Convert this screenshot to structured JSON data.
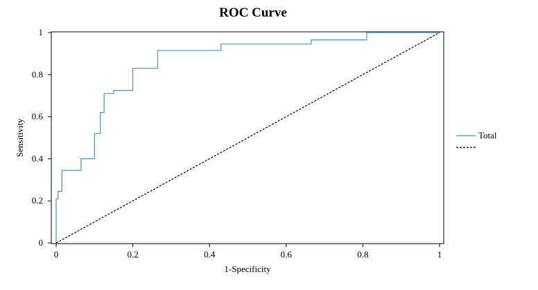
{
  "chart_data": {
    "type": "line",
    "title": "ROC Curve",
    "xlabel": "1-Specificity",
    "ylabel": "Sensitivity",
    "xlim": [
      0,
      1
    ],
    "ylim": [
      0,
      1
    ],
    "xticks": [
      "0",
      "0.2",
      "0.4",
      "0.6",
      "0.8",
      "1"
    ],
    "yticks": [
      "0",
      "0.2",
      "0.4",
      "0.6",
      "0.8",
      "1"
    ],
    "grid": false,
    "legend_position": "right",
    "series": [
      {
        "name": "Total",
        "color": "#4a8fc9",
        "style": "solid",
        "x": [
          0,
          0,
          0.005,
          0.005,
          0.015,
          0.015,
          0.065,
          0.065,
          0.1,
          0.1,
          0.115,
          0.115,
          0.125,
          0.125,
          0.15,
          0.15,
          0.2,
          0.2,
          0.265,
          0.265,
          0.43,
          0.43,
          0.665,
          0.665,
          0.81,
          0.81,
          1
        ],
        "y": [
          0,
          0.21,
          0.21,
          0.245,
          0.245,
          0.345,
          0.345,
          0.4,
          0.4,
          0.52,
          0.52,
          0.62,
          0.62,
          0.71,
          0.71,
          0.725,
          0.725,
          0.83,
          0.83,
          0.915,
          0.915,
          0.945,
          0.945,
          0.965,
          0.965,
          1,
          1
        ]
      },
      {
        "name": "",
        "color": "#000000",
        "style": "dashed",
        "x": [
          0,
          1
        ],
        "y": [
          0,
          1
        ]
      }
    ]
  }
}
